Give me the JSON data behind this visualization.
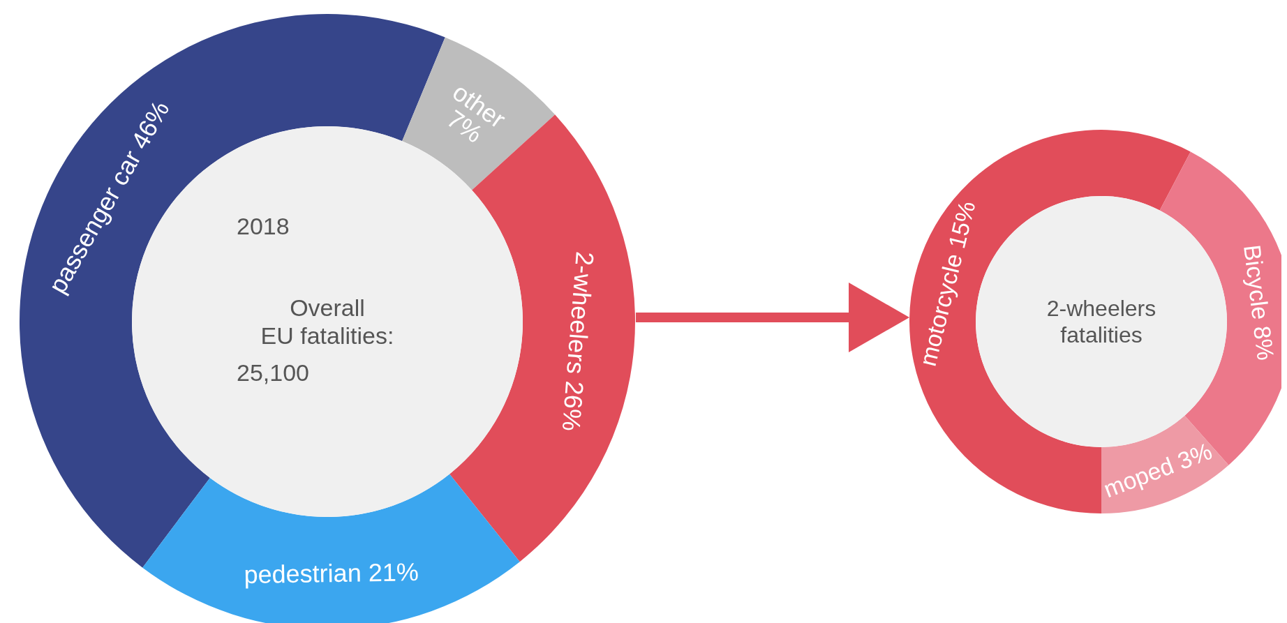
{
  "chart_data": [
    {
      "type": "donut",
      "title": "Overall EU fatalities:",
      "annotations": [
        "2018",
        "25,100"
      ],
      "categories": [
        "passenger car",
        "other",
        "2-wheelers",
        "pedestrian"
      ],
      "values": [
        46,
        7,
        26,
        21
      ],
      "value_labels": [
        "46%",
        "7%",
        "26%",
        "21%"
      ],
      "colors": [
        "#36458a",
        "#bdbdbd",
        "#e14d5a",
        "#3ba6ef"
      ]
    },
    {
      "type": "donut",
      "title": "2-wheelers fatalities",
      "categories": [
        "motorcycle",
        "Bicycle",
        "moped"
      ],
      "values": [
        15,
        8,
        3
      ],
      "value_labels": [
        "15%",
        "8%",
        "3%"
      ],
      "colors": [
        "#e14d5a",
        "#ec788a",
        "#ee9aa5"
      ]
    }
  ]
}
